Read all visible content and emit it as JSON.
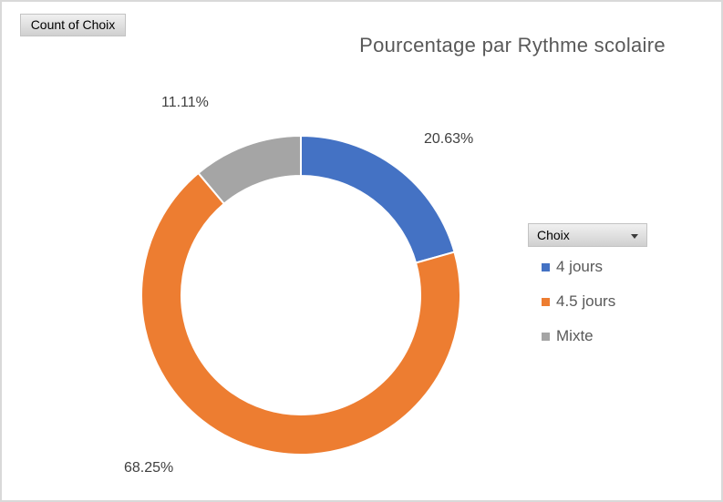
{
  "window": {
    "background": "#FFFFFF",
    "border_color": "#D9D9D9"
  },
  "pivot_buttons": {
    "value_button_label": "Count of Choix",
    "legend_button_label": "Choix"
  },
  "chart_data": {
    "type": "pie",
    "subtype": "doughnut",
    "hole_ratio": 0.75,
    "title": "Pourcentage par Rythme scolaire",
    "categories": [
      "4 jours",
      "4.5 jours",
      "Mixte"
    ],
    "values": [
      20.63,
      68.25,
      11.11
    ],
    "value_unit": "%",
    "data_labels": [
      "20.63%",
      "68.25%",
      "11.11%"
    ],
    "colors": [
      "#4472C4",
      "#ED7D31",
      "#A5A5A5"
    ],
    "legend_position": "right",
    "start_angle_deg": 0,
    "direction": "clockwise",
    "slice_border_color": "#FFFFFF"
  },
  "legend": {
    "items": [
      {
        "label": "4 jours",
        "color": "#4472C4"
      },
      {
        "label": "4.5 jours",
        "color": "#ED7D31"
      },
      {
        "label": "Mixte",
        "color": "#A5A5A5"
      }
    ]
  },
  "theme": {
    "title_color": "#595959",
    "data_label_color": "#404040",
    "legend_text_color": "#595959"
  },
  "icons": {
    "dropdown_arrow": "▾"
  }
}
